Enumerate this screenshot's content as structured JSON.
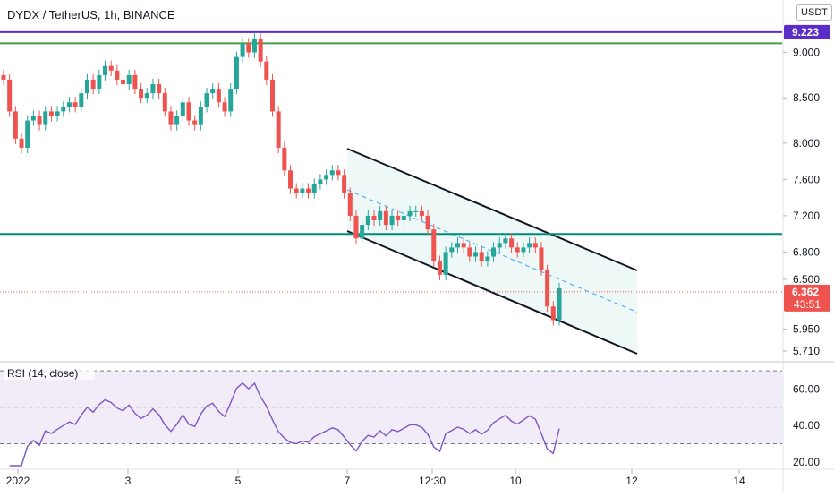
{
  "header": {
    "title": "DYDX / TetherUS, 1h, BINANCE",
    "currency": "USDT"
  },
  "colors": {
    "up": "#26a69a",
    "down": "#ef5350",
    "resistance_purple": "#5b2cc7",
    "resistance_green": "#43a047",
    "support_teal": "#00897b",
    "channel_fill": "#e0f2f1",
    "channel_mid": "#42a5f5",
    "rsi_line": "#7e57c2",
    "rsi_band": "#ede7f6",
    "last_price": "#ef5350"
  },
  "chart_data": [
    {
      "type": "candlestick",
      "title": "DYDX / TetherUS, 1h, BINANCE",
      "yticks": [
        5.71,
        5.95,
        6.5,
        6.8,
        7.2,
        7.6,
        8.0,
        8.5,
        9.0
      ],
      "ytick_labels": [
        "5.710",
        "5.950",
        "6.500",
        "6.800",
        "7.200",
        "7.600",
        "8.000",
        "8.500",
        "9.000"
      ],
      "xtick_labels": [
        "2022",
        "3",
        "5",
        "7",
        "12:30",
        "10",
        "12",
        "14"
      ],
      "levels": {
        "resistance_high": 9.223,
        "resistance_green": 9.1,
        "support_mid": 7.0,
        "last_price": 6.362
      },
      "badges": {
        "high_price": "9.223",
        "last_price": "6.362",
        "countdown": "43:51"
      },
      "close_series": [
        8.7,
        8.35,
        8.05,
        7.95,
        8.25,
        8.3,
        8.2,
        8.35,
        8.3,
        8.35,
        8.4,
        8.45,
        8.4,
        8.55,
        8.7,
        8.6,
        8.75,
        8.85,
        8.8,
        8.7,
        8.65,
        8.75,
        8.6,
        8.5,
        8.55,
        8.65,
        8.55,
        8.35,
        8.2,
        8.3,
        8.45,
        8.25,
        8.2,
        8.4,
        8.55,
        8.6,
        8.45,
        8.35,
        8.6,
        8.95,
        9.1,
        9.0,
        9.15,
        8.9,
        8.7,
        8.35,
        7.95,
        7.7,
        7.5,
        7.45,
        7.5,
        7.45,
        7.55,
        7.6,
        7.65,
        7.7,
        7.65,
        7.45,
        7.2,
        6.95,
        7.1,
        7.2,
        7.15,
        7.25,
        7.1,
        7.2,
        7.15,
        7.2,
        7.25,
        7.25,
        7.2,
        7.05,
        6.7,
        6.55,
        6.8,
        6.85,
        6.9,
        6.85,
        6.75,
        6.8,
        6.7,
        6.75,
        6.85,
        6.9,
        6.95,
        6.85,
        6.8,
        6.85,
        6.9,
        6.85,
        6.6,
        6.2,
        6.05,
        6.4
      ],
      "ylim": [
        5.65,
        9.4
      ]
    },
    {
      "type": "line",
      "title": "RSI (14, close)",
      "yticks": [
        20,
        40,
        60
      ],
      "ytick_labels": [
        "20.00",
        "40.00",
        "60.00"
      ],
      "band": [
        30,
        70
      ],
      "midline": 50,
      "ylim": [
        17,
        73
      ]
    }
  ]
}
